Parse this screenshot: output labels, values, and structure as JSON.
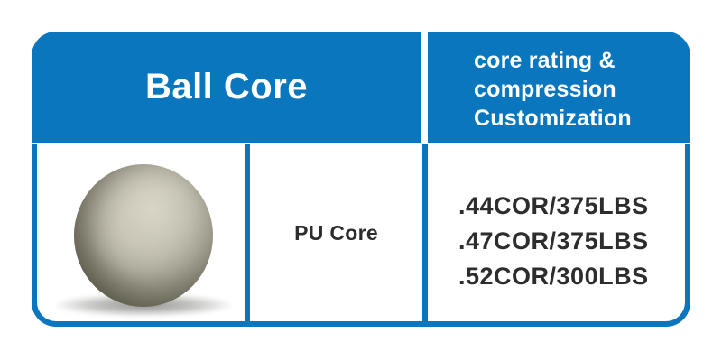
{
  "colors": {
    "accent_blue": "#0a76be",
    "header_text": "#ffffff",
    "body_text": "#2d2d2d",
    "background": "#ffffff",
    "ball_base": "#c2bfb0",
    "ball_highlight": "#d8d5c7",
    "ball_dark_edge": "#6f6d5c"
  },
  "table": {
    "header": {
      "left_title": "Ball Core",
      "right_lines": [
        "core rating &",
        "compression",
        "Customization"
      ]
    },
    "body": {
      "image": "pu-core-ball-photo",
      "material_label": "PU Core",
      "specs": [
        ".44COR/375LBS",
        ".47COR/375LBS",
        ".52COR/300LBS"
      ]
    }
  },
  "chart_data": {
    "type": "table",
    "title": "Ball Core",
    "columns": [
      "Ball Core image",
      "Ball Core material",
      "core rating & compression Customization"
    ],
    "rows": [
      [
        "PU core ball (photo)",
        "PU Core",
        ".44COR/375LBS | .47COR/375LBS | .52COR/300LBS"
      ]
    ]
  }
}
